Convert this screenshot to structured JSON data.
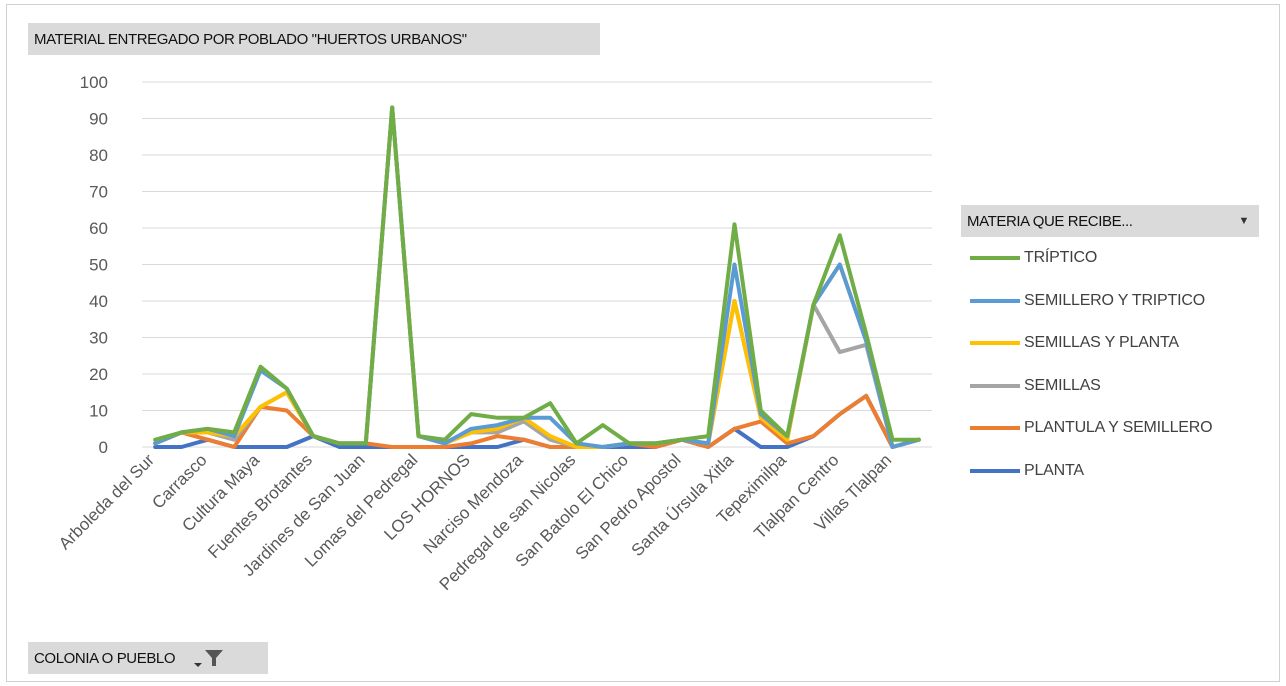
{
  "chart_title_button": {
    "label": "MATERIAL ENTREGADO POR POBLADO \"HUERTOS URBANOS\""
  },
  "legend_button": {
    "label": "MATERIA QUE RECIBE...",
    "icon": "dropdown-arrow-icon"
  },
  "axis_button": {
    "label": "COLONIA O PUEBLO",
    "icons": [
      "dropdown-arrow-icon",
      "filter-icon"
    ]
  },
  "chart_data": {
    "type": "line",
    "title": "",
    "xlabel": "",
    "ylabel": "",
    "ylim": [
      0,
      100
    ],
    "yticks": [
      0,
      10,
      20,
      30,
      40,
      50,
      60,
      70,
      80,
      90,
      100
    ],
    "grid": true,
    "legend_position": "right",
    "x": [
      "Arboleda del Sur",
      "",
      "Carrasco",
      "",
      "Cultura Maya",
      "",
      "Fuentes Brotantes",
      "",
      "Jardines de San Juan",
      "",
      "Lomas del Pedregal",
      "",
      "LOS HORNOS",
      "",
      "Narciso Mendoza",
      "",
      "Pedregal de san Nicolas",
      "",
      "San Batolo El Chico",
      "",
      "San Pedro Apostol",
      "",
      "Santa Úrsula Xitla",
      "",
      "Tepeximilpa",
      "",
      "Tlalpan Centro",
      "",
      "Villas Tlalpan",
      ""
    ],
    "series": [
      {
        "name": "TRÍPTICO",
        "color": "#70ad47",
        "values": [
          2,
          4,
          5,
          4,
          22,
          16,
          3,
          1,
          1,
          93,
          3,
          2,
          9,
          8,
          8,
          12,
          1,
          6,
          1,
          1,
          2,
          3,
          61,
          10,
          3,
          39,
          58,
          31,
          2,
          2
        ]
      },
      {
        "name": "SEMILLERO Y TRIPTICO",
        "color": "#5b9bd5",
        "values": [
          1,
          4,
          5,
          3,
          21,
          16,
          3,
          1,
          1,
          93,
          3,
          1,
          5,
          6,
          8,
          8,
          1,
          0,
          1,
          1,
          2,
          1,
          50,
          9,
          3,
          39,
          50,
          29,
          0,
          2
        ]
      },
      {
        "name": "SEMILLAS Y PLANTA",
        "color": "#ffc000",
        "values": [
          1,
          4,
          4,
          3,
          11,
          15,
          3,
          1,
          1,
          93,
          3,
          1,
          4,
          5,
          8,
          3,
          0,
          0,
          1,
          1,
          2,
          1,
          40,
          8,
          2,
          39,
          50,
          29,
          0,
          2
        ]
      },
      {
        "name": "SEMILLAS",
        "color": "#a5a5a5",
        "values": [
          1,
          4,
          4,
          2,
          11,
          15,
          3,
          1,
          1,
          93,
          3,
          1,
          4,
          4,
          7,
          2,
          0,
          0,
          1,
          1,
          2,
          1,
          40,
          8,
          2,
          39,
          26,
          28,
          0,
          2
        ]
      },
      {
        "name": "PLANTULA Y SEMILLERO",
        "color": "#ed7d31",
        "values": [
          1,
          4,
          2,
          0,
          11,
          10,
          3,
          1,
          1,
          0,
          0,
          0,
          1,
          3,
          2,
          0,
          0,
          0,
          1,
          0,
          2,
          0,
          5,
          7,
          1,
          3,
          9,
          14,
          0,
          2
        ]
      },
      {
        "name": "PLANTA",
        "color": "#4472c4",
        "values": [
          0,
          0,
          2,
          0,
          0,
          0,
          3,
          0,
          0,
          0,
          0,
          0,
          0,
          0,
          2,
          0,
          0,
          0,
          0,
          0,
          2,
          0,
          5,
          0,
          0,
          3,
          9,
          14,
          0,
          2
        ]
      }
    ]
  }
}
